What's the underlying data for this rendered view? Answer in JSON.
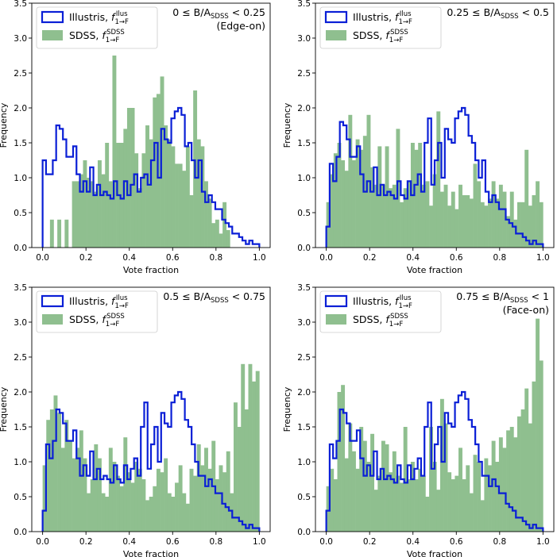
{
  "chart_data": [
    {
      "type": "bar",
      "panel_label": "0 ≤ B/A_SDSS < 0.25",
      "panel_sublabel": "(Edge-on)",
      "xlabel": "Vote fraction",
      "ylabel": "Frequency",
      "xlim": [
        -0.05,
        1.05
      ],
      "ylim": [
        0,
        3.5
      ],
      "xticks": [
        "0.0",
        "0.2",
        "0.4",
        "0.6",
        "0.8",
        "1.0"
      ],
      "yticks": [
        "0.0",
        "0.5",
        "1.0",
        "1.5",
        "2.0",
        "2.5",
        "3.0",
        "3.5"
      ],
      "legend": {
        "position": "upper left",
        "entries": [
          "Illustris, f1→F Ilus",
          "SDSS, f1→F SDSS"
        ]
      },
      "series": [
        {
          "name": "Illustris",
          "style": "step",
          "color": "#0a1fd6",
          "values": [
            1.25,
            1.05,
            1.05,
            1.25,
            1.75,
            1.7,
            1.55,
            1.3,
            1.3,
            1.45,
            1.05,
            0.8,
            0.95,
            0.8,
            1.15,
            0.75,
            0.9,
            0.75,
            0.8,
            0.75,
            0.7,
            0.95,
            0.75,
            0.7,
            0.95,
            0.75,
            0.9,
            1.05,
            0.8,
            1.0,
            1.05,
            0.9,
            1.25,
            1.5,
            1.0,
            1.7,
            1.55,
            1.5,
            1.85,
            1.95,
            2.0,
            1.9,
            1.45,
            1.5,
            1.25,
            1.0,
            1.25,
            0.8,
            0.65,
            0.75,
            0.65,
            0.55,
            0.55,
            0.4,
            0.35,
            0.3,
            0.2,
            0.2,
            0.15,
            0.1,
            0.05,
            0.1,
            0.05,
            0.05
          ]
        },
        {
          "name": "SDSS",
          "style": "filled",
          "color": "#8fbf8f",
          "values": [
            0,
            0,
            0.4,
            0,
            0.4,
            0,
            0.4,
            0,
            0.95,
            0.95,
            1.05,
            1.25,
            1.0,
            0.95,
            0.8,
            1.25,
            1.05,
            1.5,
            0.95,
            2.75,
            1.5,
            1.5,
            1.7,
            2.0,
            2.0,
            1.35,
            0.85,
            1.35,
            1.75,
            1.55,
            2.15,
            2.2,
            2.45,
            1.75,
            1.55,
            1.45,
            1.2,
            1.2,
            1.1,
            1.45,
            0.75,
            2.25,
            1.55,
            1.45,
            0.95,
            0.7,
            0.35,
            0.4,
            0.2,
            0.65,
            0.25,
            0,
            0,
            0,
            0,
            0,
            0,
            0,
            0
          ]
        }
      ]
    },
    {
      "type": "bar",
      "panel_label": "0.25 ≤ B/A_SDSS < 0.5",
      "panel_sublabel": "",
      "xlabel": "Vote fraction",
      "ylabel": "Frequency",
      "xlim": [
        -0.05,
        1.05
      ],
      "ylim": [
        0,
        3.5
      ],
      "xticks": [
        "0.0",
        "0.2",
        "0.4",
        "0.6",
        "0.8",
        "1.0"
      ],
      "yticks": [
        "0.0",
        "0.5",
        "1.0",
        "1.5",
        "2.0",
        "2.5",
        "3.0",
        "3.5"
      ],
      "legend": {
        "position": "upper left",
        "entries": [
          "Illustris, f1→F Ilus",
          "SDSS, f1→F SDSS"
        ]
      },
      "series": [
        {
          "name": "Illustris",
          "style": "step",
          "color": "#0a1fd6",
          "values": [
            0.3,
            1.2,
            0.95,
            1.3,
            1.8,
            1.75,
            1.55,
            1.3,
            1.3,
            1.45,
            1.05,
            0.8,
            0.95,
            0.8,
            1.15,
            0.75,
            0.9,
            0.75,
            0.8,
            0.75,
            0.7,
            0.95,
            0.75,
            0.7,
            0.95,
            0.75,
            0.9,
            1.05,
            0.8,
            1.5,
            1.85,
            0.9,
            1.25,
            1.5,
            1.0,
            1.7,
            1.55,
            1.5,
            1.85,
            1.95,
            2.0,
            1.9,
            1.6,
            1.5,
            1.25,
            1.0,
            1.25,
            0.8,
            0.65,
            0.75,
            0.65,
            0.55,
            0.55,
            0.4,
            0.35,
            0.3,
            0.2,
            0.2,
            0.15,
            0.1,
            0.05,
            0.1,
            0.05,
            0.05
          ]
        },
        {
          "name": "SDSS",
          "style": "filled",
          "color": "#8fbf8f",
          "values": [
            0.65,
            1.05,
            1.35,
            1.5,
            1.25,
            1.1,
            1.9,
            1.25,
            1.55,
            1.4,
            1.6,
            1.9,
            1.15,
            0.9,
            1.45,
            0.9,
            1.45,
            0.85,
            0.9,
            1.7,
            0.65,
            0.85,
            0.95,
            1.5,
            1.4,
            1.5,
            0.9,
            0.95,
            0.6,
            1.05,
            1.95,
            0.8,
            0.9,
            0.6,
            0.8,
            0.55,
            0.9,
            0.75,
            0.75,
            0.7,
            1.2,
            0.95,
            0.65,
            0.6,
            0.7,
            0.95,
            0.7,
            0.9,
            0.8,
            0.45,
            0.8,
            0.4,
            0.65,
            0.65,
            1.4,
            0.6,
            0.75,
            0.95,
            0.65
          ]
        }
      ]
    },
    {
      "type": "bar",
      "panel_label": "0.5 ≤ B/A_SDSS < 0.75",
      "panel_sublabel": "",
      "xlabel": "Vote fraction",
      "ylabel": "Frequency",
      "xlim": [
        -0.05,
        1.05
      ],
      "ylim": [
        0,
        3.5
      ],
      "xticks": [
        "0.0",
        "0.2",
        "0.4",
        "0.6",
        "0.8",
        "1.0"
      ],
      "yticks": [
        "0.0",
        "0.5",
        "1.0",
        "1.5",
        "2.0",
        "2.5",
        "3.0",
        "3.5"
      ],
      "legend": {
        "position": "upper left",
        "entries": [
          "Illustris, f1→F Ilus",
          "SDSS, f1→F SDSS"
        ]
      },
      "series": [
        {
          "name": "Illustris",
          "style": "step",
          "color": "#0a1fd6",
          "values": [
            0.3,
            1.25,
            1.05,
            1.3,
            1.75,
            1.7,
            1.55,
            1.3,
            1.3,
            1.45,
            1.05,
            0.8,
            0.95,
            0.8,
            1.15,
            0.75,
            0.9,
            0.75,
            0.8,
            0.75,
            0.7,
            0.95,
            0.75,
            0.7,
            0.95,
            0.75,
            0.9,
            1.05,
            0.8,
            1.5,
            1.85,
            0.9,
            1.25,
            1.5,
            1.0,
            1.7,
            1.55,
            1.5,
            1.85,
            1.95,
            2.0,
            1.9,
            1.6,
            1.5,
            1.25,
            1.0,
            0.8,
            0.8,
            0.65,
            0.75,
            0.65,
            0.55,
            0.55,
            0.4,
            0.35,
            0.3,
            0.2,
            0.2,
            0.15,
            0.1,
            0.05,
            0.1,
            0.05,
            0.05
          ]
        },
        {
          "name": "SDSS",
          "style": "filled",
          "color": "#8fbf8f",
          "values": [
            0.95,
            1.6,
            1.75,
            1.95,
            1.7,
            1.2,
            1.6,
            1.3,
            1.05,
            1.2,
            1.45,
            1.05,
            0.55,
            0.75,
            1.25,
            1.05,
            0.55,
            0.5,
            1.2,
            1.0,
            0.8,
            0.65,
            1.35,
            0.85,
            0.7,
            1.0,
            0.9,
            0.75,
            0.45,
            0.5,
            0.65,
            0.9,
            0.85,
            1.05,
            0.55,
            0.5,
            0.7,
            0.95,
            0.55,
            0.4,
            0.9,
            0.8,
            1.25,
            0.95,
            1.2,
            0.9,
            1.3,
            0.75,
            0.95,
            0.85,
            1.15,
            0.55,
            1.85,
            1.5,
            2.4,
            1.75,
            2.4,
            2.15,
            2.3
          ]
        }
      ]
    },
    {
      "type": "bar",
      "panel_label": "0.75 ≤ B/A_SDSS < 1",
      "panel_sublabel": "(Face-on)",
      "xlabel": "Vote fraction",
      "ylabel": "Frequency",
      "xlim": [
        -0.05,
        1.05
      ],
      "ylim": [
        0,
        3.5
      ],
      "xticks": [
        "0.0",
        "0.2",
        "0.4",
        "0.6",
        "0.8",
        "1.0"
      ],
      "yticks": [
        "0.0",
        "0.5",
        "1.0",
        "1.5",
        "2.0",
        "2.5",
        "3.0",
        "3.5"
      ],
      "legend": {
        "position": "upper left",
        "entries": [
          "Illustris, f1→F Ilus",
          "SDSS, f1→F SDSS"
        ]
      },
      "series": [
        {
          "name": "Illustris",
          "style": "step",
          "color": "#0a1fd6",
          "values": [
            0.3,
            1.25,
            1.05,
            1.3,
            1.75,
            1.7,
            1.55,
            1.3,
            1.3,
            1.45,
            1.05,
            0.8,
            0.95,
            0.8,
            1.15,
            0.75,
            0.9,
            0.75,
            0.8,
            0.75,
            0.7,
            0.95,
            0.75,
            0.7,
            0.95,
            0.75,
            0.9,
            1.05,
            0.8,
            1.5,
            1.85,
            0.9,
            1.25,
            1.5,
            1.0,
            1.7,
            1.55,
            1.5,
            1.85,
            1.95,
            2.0,
            1.9,
            1.6,
            1.5,
            1.25,
            1.0,
            0.8,
            0.8,
            0.65,
            0.75,
            0.65,
            0.55,
            0.55,
            0.4,
            0.35,
            0.3,
            0.2,
            0.2,
            0.15,
            0.1,
            0.05,
            0.1,
            0.05,
            0.05
          ]
        },
        {
          "name": "SDSS",
          "style": "filled",
          "color": "#8fbf8f",
          "values": [
            0.65,
            0.9,
            0.75,
            2.0,
            2.1,
            1.05,
            1.55,
            1.15,
            0.9,
            1.5,
            1.3,
            1.0,
            1.4,
            0.6,
            0.8,
            1.3,
            1.25,
            0.85,
            1.15,
            0.8,
            0.7,
            1.5,
            0.75,
            1.0,
            0.75,
            0.9,
            0.8,
            0.5,
            1.5,
            1.0,
            0.6,
            1.9,
            1.55,
            0.85,
            0.75,
            0.8,
            1.2,
            0.75,
            0.95,
            0.55,
            1.1,
            1.0,
            0.45,
            1.05,
            0.95,
            1.3,
            1.0,
            1.35,
            1.2,
            1.45,
            1.5,
            1.35,
            1.65,
            1.75,
            2.05,
            1.55,
            2.15,
            3.05,
            2.45
          ]
        }
      ]
    }
  ]
}
